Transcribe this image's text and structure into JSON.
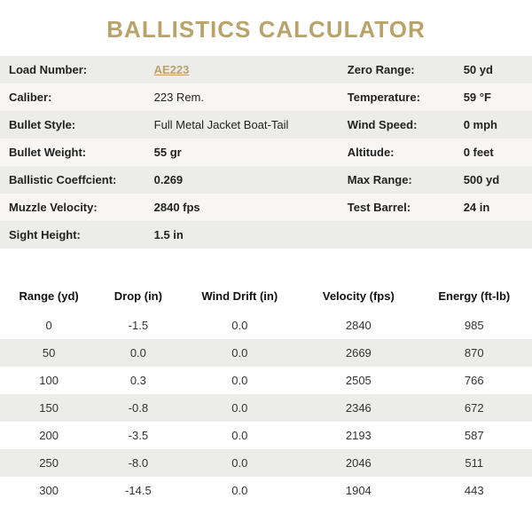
{
  "title": "BALLISTICS CALCULATOR",
  "specs": {
    "rows": [
      {
        "l1": "Load Number:",
        "v1": "AE223",
        "v1_link": true,
        "l2": "Zero Range:",
        "v2": "50 yd"
      },
      {
        "l1": "Caliber:",
        "v1": "223 Rem.",
        "l2": "Temperature:",
        "v2": "59 °F"
      },
      {
        "l1": "Bullet Style:",
        "v1": "Full Metal Jacket Boat-Tail",
        "l2": "Wind Speed:",
        "v2": "0 mph"
      },
      {
        "l1": "Bullet Weight:",
        "v1": "55 gr",
        "v1_bold": true,
        "l2": "Altitude:",
        "v2": "0 feet"
      },
      {
        "l1": "Ballistic Coeffcient:",
        "v1": "0.269",
        "v1_bold": true,
        "l2": "Max Range:",
        "v2": "500 yd"
      },
      {
        "l1": "Muzzle Velocity:",
        "v1": "2840 fps",
        "v1_bold": true,
        "l2": "Test Barrel:",
        "v2": "24 in"
      },
      {
        "l1": "Sight Height:",
        "v1": "1.5 in",
        "v1_bold": true,
        "l2": "",
        "v2": ""
      }
    ]
  },
  "table": {
    "headers": [
      "Range (yd)",
      "Drop (in)",
      "Wind Drift (in)",
      "Velocity (fps)",
      "Energy (ft-lb)"
    ],
    "rows": [
      [
        "0",
        "-1.5",
        "0.0",
        "2840",
        "985"
      ],
      [
        "50",
        "0.0",
        "0.0",
        "2669",
        "870"
      ],
      [
        "100",
        "0.3",
        "0.0",
        "2505",
        "766"
      ],
      [
        "150",
        "-0.8",
        "0.0",
        "2346",
        "672"
      ],
      [
        "200",
        "-3.5",
        "0.0",
        "2193",
        "587"
      ],
      [
        "250",
        "-8.0",
        "0.0",
        "2046",
        "511"
      ],
      [
        "300",
        "-14.5",
        "0.0",
        "1904",
        "443"
      ]
    ]
  },
  "colors": {
    "accent": "#b9a36a",
    "row_alt": "#ececea",
    "row_light": "#f7f6f5",
    "background": "#ffffff",
    "text": "#333333"
  }
}
